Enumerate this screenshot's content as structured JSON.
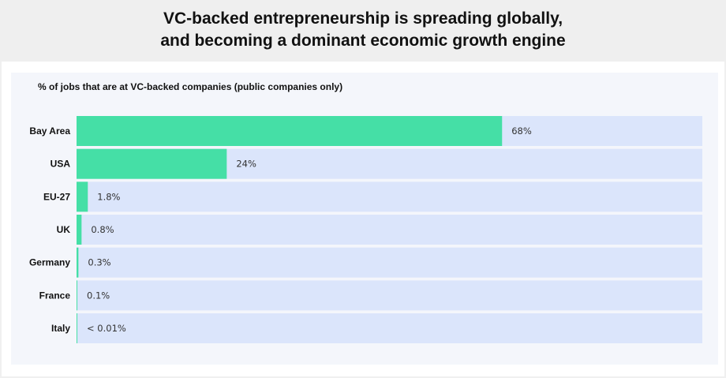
{
  "title": {
    "line1": "VC-backed entrepreneurship is spreading globally,",
    "line2": "and becoming a dominant economic growth engine"
  },
  "colors": {
    "bar": "#45dfa6",
    "track": "#dbe5fb",
    "background": "#f0f0f0",
    "panel": "#f4f6fb"
  },
  "chart_data": {
    "type": "bar",
    "orientation": "horizontal",
    "subtitle": "% of jobs that are at VC-backed companies (public companies only)",
    "categories": [
      "Bay Area",
      "USA",
      "EU-27",
      "UK",
      "Germany",
      "France",
      "Italy"
    ],
    "values": [
      68,
      24,
      1.8,
      0.8,
      0.3,
      0.1,
      0.005
    ],
    "value_labels": [
      "68%",
      "24%",
      "1.8%",
      "0.8%",
      "0.3%",
      "0.1%",
      "< 0.01%"
    ],
    "xlim": [
      0,
      100
    ],
    "grid": false,
    "legend": "none"
  }
}
